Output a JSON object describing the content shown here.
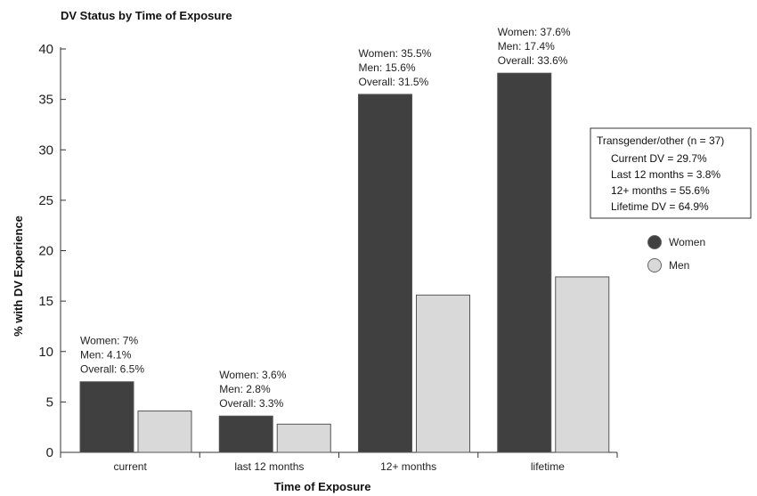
{
  "chart_data": {
    "type": "bar",
    "title": "DV Status by Time of Exposure",
    "xlabel": "Time of Exposure",
    "ylabel": "% with DV Experience",
    "ylim": [
      0,
      40
    ],
    "yticks": [
      0,
      5,
      10,
      15,
      20,
      25,
      30,
      35,
      40
    ],
    "categories": [
      "current",
      "last 12 months",
      "12+ months",
      "lifetime"
    ],
    "series": [
      {
        "name": "Women",
        "color": "#404040",
        "values": [
          7,
          3.6,
          35.5,
          37.6
        ]
      },
      {
        "name": "Men",
        "color": "#d9d9d9",
        "values": [
          4.1,
          2.8,
          15.6,
          17.4
        ]
      }
    ],
    "annotations": [
      [
        "Women: 7%",
        "Men: 4.1%",
        "Overall: 6.5%"
      ],
      [
        "Women: 3.6%",
        "Men: 2.8%",
        "Overall: 3.3%"
      ],
      [
        "Women: 35.5%",
        "Men: 15.6%",
        "Overall: 31.5%"
      ],
      [
        "Women: 37.6%",
        "Men: 17.4%",
        "Overall: 33.6%"
      ]
    ],
    "legend": {
      "placement": "right",
      "entries": [
        "Women",
        "Men"
      ]
    },
    "info_box": {
      "title": "Transgender/other (n = 37)",
      "lines": [
        "Current DV = 29.7%",
        "Last 12 months = 3.8%",
        "12+ months = 55.6%",
        "Lifetime DV = 64.9%"
      ]
    }
  }
}
